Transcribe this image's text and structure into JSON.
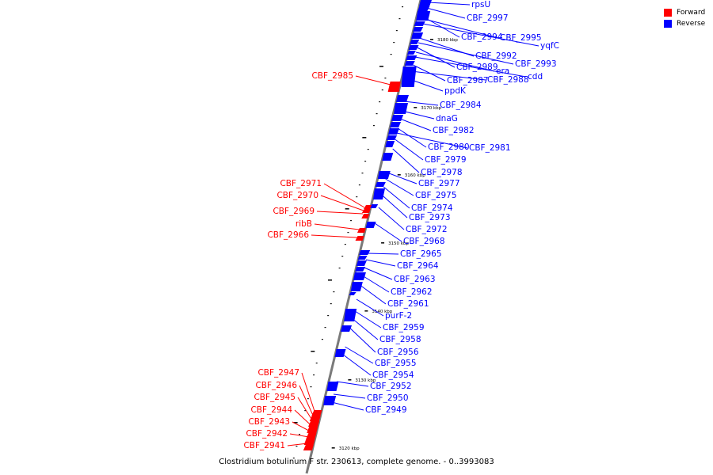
{
  "legend": {
    "forward_label": "Forward",
    "forward_color": "#ff0000",
    "reverse_label": "Reverse",
    "reverse_color": "#0000ff"
  },
  "caption": "Clostridium botulinum F str. 230613, complete genome. - 0..3993083",
  "scale_ticks": [
    "3120 kbp",
    "3130 kbp",
    "3140 kbp",
    "3150 kbp",
    "3160 kbp",
    "3170 kbp",
    "3180 kbp"
  ],
  "forward_genes": [
    "CBF_2985",
    "CBF_2971",
    "CBF_2970",
    "CBF_2969",
    "ribB",
    "CBF_2966",
    "CBF_2947",
    "CBF_2946",
    "CBF_2945",
    "CBF_2944",
    "CBF_2943",
    "CBF_2942",
    "CBF_2941"
  ],
  "reverse_genes": [
    "rpsU",
    "CBF_2997",
    "CBF_2994",
    "CBF_2995",
    "yqfC",
    "CBF_2992",
    "CBF_2993",
    "CBF_2989",
    "era",
    "cdd",
    "CBF_2987",
    "CBF_2988",
    "ppdK",
    "CBF_2984",
    "dnaG",
    "CBF_2982",
    "CBF_2980",
    "CBF_2981",
    "CBF_2979",
    "CBF_2978",
    "CBF_2977",
    "CBF_2975",
    "CBF_2974",
    "CBF_2973",
    "CBF_2972",
    "CBF_2968",
    "CBF_2965",
    "CBF_2964",
    "CBF_2963",
    "CBF_2962",
    "CBF_2961",
    "purF-2",
    "CBF_2959",
    "CBF_2958",
    "CBF_2956",
    "CBF_2955",
    "CBF_2954",
    "CBF_2952",
    "CBF_2950",
    "CBF_2949"
  ]
}
